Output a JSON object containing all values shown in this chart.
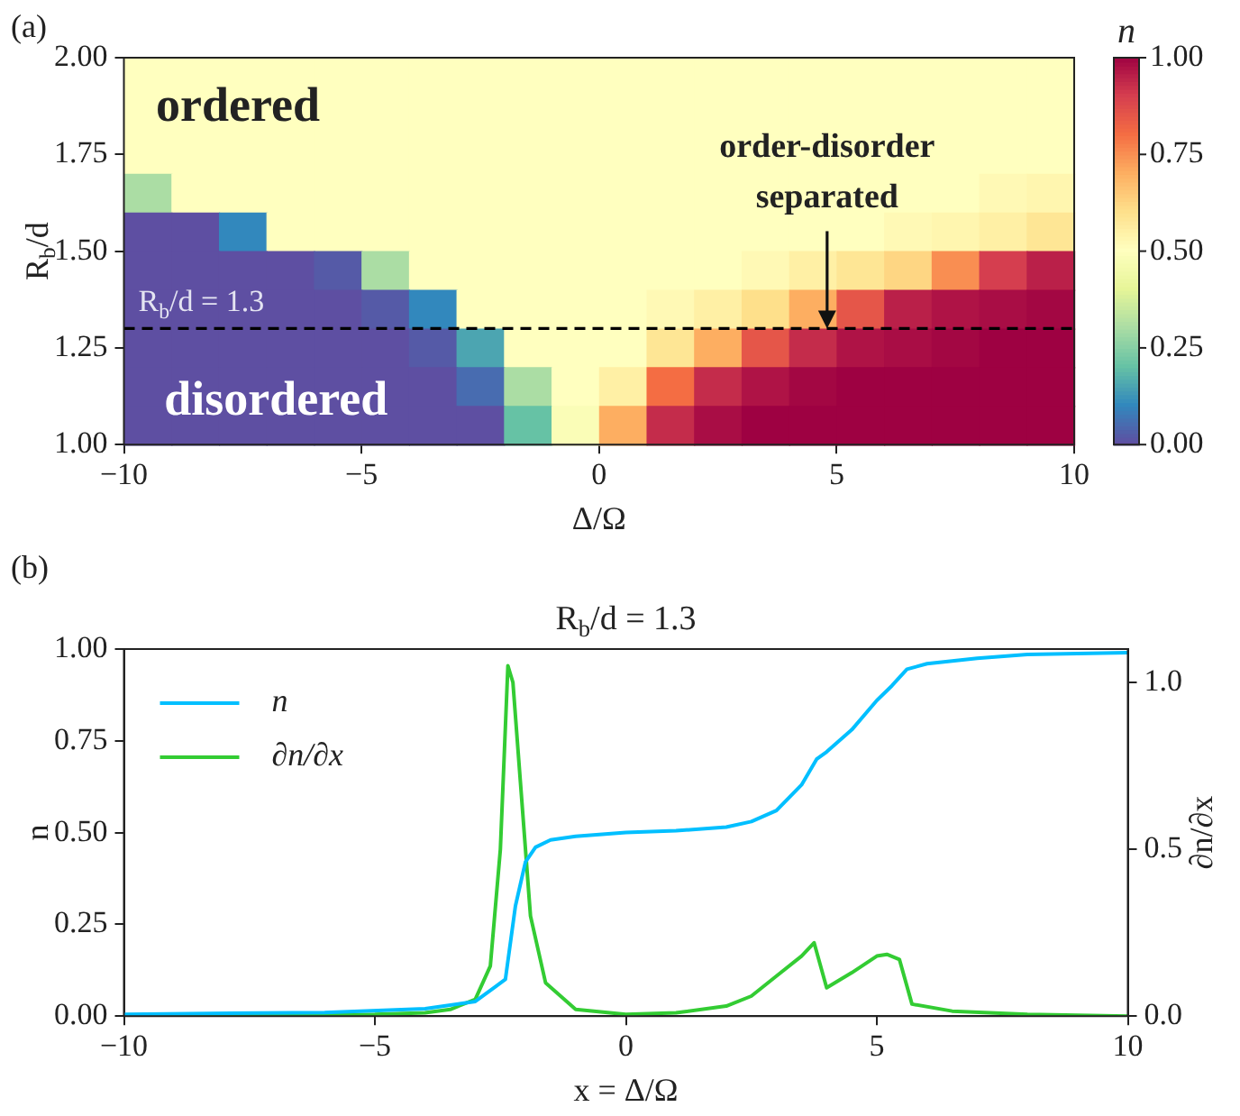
{
  "chart_data": [
    {
      "type": "heatmap",
      "xlabel": "Δ/Ω",
      "ylabel": "R$_{b}$/d",
      "clabel": "n",
      "annotations": [
        "(a)",
        "ordered",
        "disordered",
        {
          "text": "order-disorder separated",
          "x": 4.8,
          "y": 1.3
        }
      ],
      "x": [
        -9.5,
        -8.5,
        -7.5,
        -6.5,
        -5.5,
        -4.5,
        -3.5,
        -2.5,
        -1.5,
        -0.5,
        0.5,
        1.5,
        2.5,
        3.5,
        4.5,
        5.5,
        6.5,
        7.5,
        8.5,
        9.5
      ],
      "y": [
        1.95,
        1.85,
        1.75,
        1.65,
        1.55,
        1.45,
        1.35,
        1.25,
        1.15,
        1.05
      ],
      "cells": [
        [
          0.5,
          0.5,
          0.5,
          0.5,
          0.5,
          0.5,
          0.5,
          0.5,
          0.5,
          0.5,
          0.5,
          0.5,
          0.5,
          0.5,
          0.5,
          0.5,
          0.5,
          0.5,
          0.5,
          0.5
        ],
        [
          0.5,
          0.5,
          0.5,
          0.5,
          0.5,
          0.5,
          0.5,
          0.5,
          0.5,
          0.5,
          0.5,
          0.5,
          0.5,
          0.5,
          0.5,
          0.5,
          0.5,
          0.5,
          0.5,
          0.5
        ],
        [
          0.5,
          0.5,
          0.5,
          0.5,
          0.5,
          0.5,
          0.5,
          0.5,
          0.5,
          0.5,
          0.5,
          0.5,
          0.5,
          0.5,
          0.5,
          0.5,
          0.5,
          0.5,
          0.5,
          0.5
        ],
        [
          0.3,
          0.5,
          0.5,
          0.5,
          0.5,
          0.5,
          0.5,
          0.5,
          0.5,
          0.5,
          0.5,
          0.5,
          0.5,
          0.5,
          0.5,
          0.5,
          0.5,
          0.5,
          0.52,
          0.53
        ],
        [
          0,
          0,
          0.1,
          0.5,
          0.5,
          0.5,
          0.5,
          0.5,
          0.5,
          0.5,
          0.5,
          0.5,
          0.5,
          0.5,
          0.5,
          0.5,
          0.52,
          0.53,
          0.55,
          0.58
        ],
        [
          0,
          0,
          0,
          0,
          0.02,
          0.3,
          0.5,
          0.5,
          0.5,
          0.5,
          0.5,
          0.5,
          0.5,
          0.52,
          0.55,
          0.58,
          0.62,
          0.75,
          0.9,
          0.95
        ],
        [
          0,
          0,
          0,
          0,
          0,
          0.02,
          0.1,
          0.5,
          0.5,
          0.5,
          0.5,
          0.52,
          0.55,
          0.6,
          0.7,
          0.85,
          0.95,
          0.97,
          0.98,
          0.99
        ],
        [
          0,
          0,
          0,
          0,
          0,
          0,
          0.02,
          0.15,
          0.5,
          0.5,
          0.5,
          0.58,
          0.7,
          0.85,
          0.93,
          0.97,
          0.98,
          0.99,
          1,
          1
        ],
        [
          0,
          0,
          0,
          0,
          0,
          0,
          0,
          0.05,
          0.3,
          0.5,
          0.55,
          0.8,
          0.93,
          0.97,
          0.99,
          1,
          1,
          1,
          1,
          1
        ],
        [
          0,
          0,
          0,
          0,
          0,
          0,
          0,
          0,
          0.2,
          0.48,
          0.7,
          0.93,
          0.98,
          1,
          1,
          1,
          1,
          1,
          1,
          1
        ]
      ],
      "clim": [
        0,
        1
      ],
      "cticks": [
        {
          "value": 0,
          "label": "0.00"
        },
        {
          "value": 0.25,
          "label": "0.25"
        },
        {
          "value": 0.5,
          "label": "0.50"
        },
        {
          "value": 0.75,
          "label": "0.75"
        },
        {
          "value": 1,
          "label": "1.00"
        }
      ],
      "xlim": [
        -10,
        10
      ],
      "xticks": [
        -10,
        -5,
        0,
        5,
        10
      ],
      "ylim": [
        1,
        2
      ],
      "yticks": [
        {
          "value": 1,
          "label": "1.00"
        },
        {
          "value": 1.25,
          "label": "1.25"
        },
        {
          "value": 1.5,
          "label": "1.50"
        },
        {
          "value": 1.75,
          "label": "1.75"
        },
        {
          "value": 2,
          "label": "2.00"
        }
      ],
      "ref_lines": [
        {
          "axis": "y",
          "value": 1.3,
          "label": "R$_{b}$/d = 1.3",
          "color": "#000000",
          "line_style": "dashed"
        }
      ]
    },
    {
      "type": "line",
      "title": "R$_{b}$/d = 1.3",
      "xlabel": "x = Δ/Ω",
      "ylabel": "n",
      "y2label": "∂n/∂x",
      "annotations": [
        "(b)"
      ],
      "series": [
        {
          "name": "n",
          "color": "#00bfff",
          "x": [
            -10,
            -6,
            -4,
            -3,
            -2.6,
            -2.4,
            -2.2,
            -2,
            -1.8,
            -1.5,
            -1,
            0,
            1,
            2,
            2.5,
            3,
            3.5,
            3.8,
            4,
            4.5,
            5,
            5.3,
            5.6,
            6,
            7,
            8,
            10
          ],
          "values": [
            0.005,
            0.01,
            0.02,
            0.04,
            0.08,
            0.1,
            0.3,
            0.42,
            0.46,
            0.48,
            0.49,
            0.5,
            0.505,
            0.515,
            0.53,
            0.56,
            0.63,
            0.7,
            0.72,
            0.78,
            0.86,
            0.9,
            0.945,
            0.96,
            0.975,
            0.985,
            0.99
          ]
        },
        {
          "name": "∂n/∂x",
          "color": "#33cc33",
          "axis": "y2",
          "x": [
            -10,
            -5,
            -4,
            -3.5,
            -3,
            -2.7,
            -2.5,
            -2.35,
            -2.25,
            -2.1,
            -1.9,
            -1.6,
            -1,
            0,
            1,
            2,
            2.5,
            3,
            3.5,
            3.75,
            4,
            4.5,
            5,
            5.2,
            5.45,
            5.7,
            6.5,
            8,
            10
          ],
          "values": [
            0,
            0.005,
            0.01,
            0.02,
            0.05,
            0.15,
            0.5,
            1.05,
            1.0,
            0.7,
            0.3,
            0.1,
            0.02,
            0.005,
            0.01,
            0.03,
            0.06,
            0.12,
            0.18,
            0.22,
            0.085,
            0.13,
            0.18,
            0.185,
            0.17,
            0.036,
            0.015,
            0.005,
            0
          ]
        }
      ],
      "xlim": [
        -10,
        10
      ],
      "xticks": [
        -10,
        -5,
        0,
        5,
        10
      ],
      "ylim": [
        0,
        1
      ],
      "yticks": [
        {
          "value": 0,
          "label": "0.00"
        },
        {
          "value": 0.25,
          "label": "0.25"
        },
        {
          "value": 0.5,
          "label": "0.50"
        },
        {
          "value": 0.75,
          "label": "0.75"
        },
        {
          "value": 1,
          "label": "1.00"
        }
      ],
      "y2lim": [
        0,
        1.1
      ],
      "y2ticks": [
        {
          "value": 0,
          "label": "0.0"
        },
        {
          "value": 0.5,
          "label": "0.5"
        },
        {
          "value": 1,
          "label": "1.0"
        }
      ],
      "legend": "top left",
      "marker": "none",
      "line_style": "solid"
    }
  ]
}
